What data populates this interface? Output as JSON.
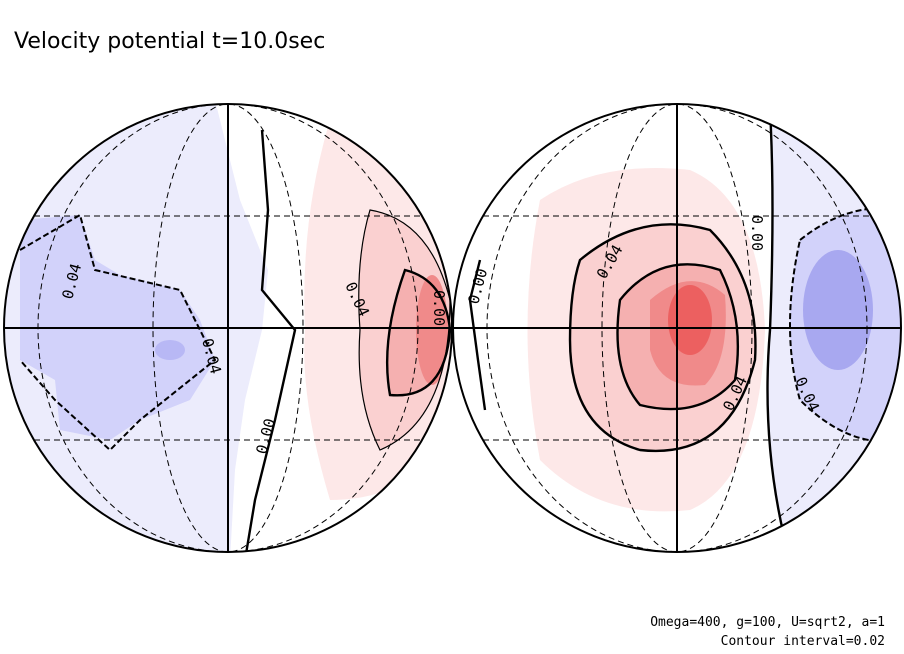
{
  "title": "Velocity potential t=10.0sec",
  "left_globe": {
    "labels": [
      "0.04",
      "0.04",
      "0.04",
      "0.00",
      "0.00"
    ]
  },
  "right_globe": {
    "labels": [
      "0.00",
      "0.04",
      "0.00",
      "0.04",
      "0.04"
    ]
  },
  "footer": {
    "params": "Omega=400, g=100, U=sqrt2, a=1",
    "interval": "Contour interval=0.02"
  }
}
